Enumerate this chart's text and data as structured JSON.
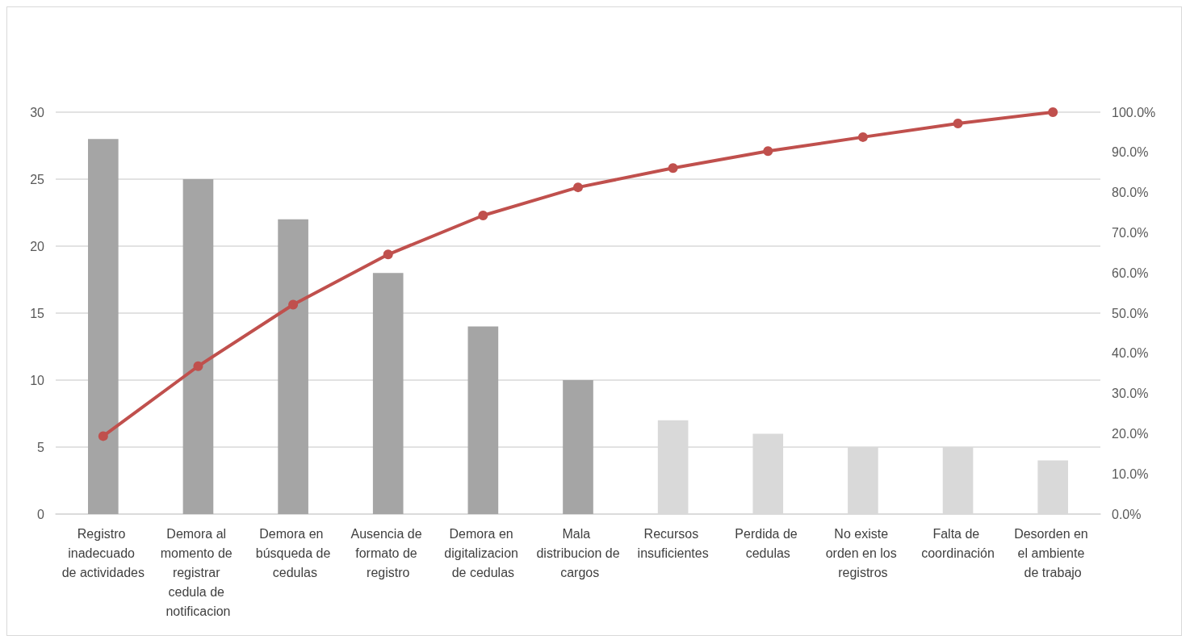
{
  "chart_data": {
    "type": "bar",
    "categories": [
      "Registro inadecuado de actividades",
      "Demora al momento de registrar cedula de notificacion",
      "Demora en búsqueda de cedulas",
      "Ausencia de formato de registro",
      "Demora en digitalizacion de cedulas",
      "Mala distribucion de cargos",
      "Recursos insuficientes",
      "Perdida de cedulas",
      "No existe orden en los registros",
      "Falta de coordinación",
      "Desorden en el ambiente de trabajo"
    ],
    "series": [
      {
        "values": [
          28,
          25,
          22,
          18,
          14,
          10,
          7,
          6,
          5,
          5,
          4
        ],
        "colors": [
          "#a5a5a5",
          "#a5a5a5",
          "#a5a5a5",
          "#a5a5a5",
          "#a5a5a5",
          "#a5a5a5",
          "#d9d9d9",
          "#d9d9d9",
          "#d9d9d9",
          "#d9d9d9",
          "#d9d9d9"
        ]
      },
      {
        "type": "line",
        "axis": "y2",
        "color": "#c0504d",
        "marker": "circle",
        "values": [
          19.4,
          36.8,
          52.1,
          64.6,
          74.3,
          81.3,
          86.1,
          90.3,
          93.8,
          97.2,
          100
        ]
      }
    ],
    "ylim": [
      0,
      30
    ],
    "yticks": [
      0,
      5,
      10,
      15,
      20,
      25,
      30
    ],
    "y2lim": [
      0,
      100
    ],
    "y2ticks": [
      {
        "value": 0,
        "label": "0.0%"
      },
      {
        "value": 10,
        "label": "10.0%"
      },
      {
        "value": 20,
        "label": "20.0%"
      },
      {
        "value": 30,
        "label": "30.0%"
      },
      {
        "value": 40,
        "label": "40.0%"
      },
      {
        "value": 50,
        "label": "50.0%"
      },
      {
        "value": 60,
        "label": "60.0%"
      },
      {
        "value": 70,
        "label": "70.0%"
      },
      {
        "value": 80,
        "label": "80.0%"
      },
      {
        "value": 90,
        "label": "90.0%"
      },
      {
        "value": 100,
        "label": "100.0%"
      }
    ],
    "grid": "y"
  }
}
